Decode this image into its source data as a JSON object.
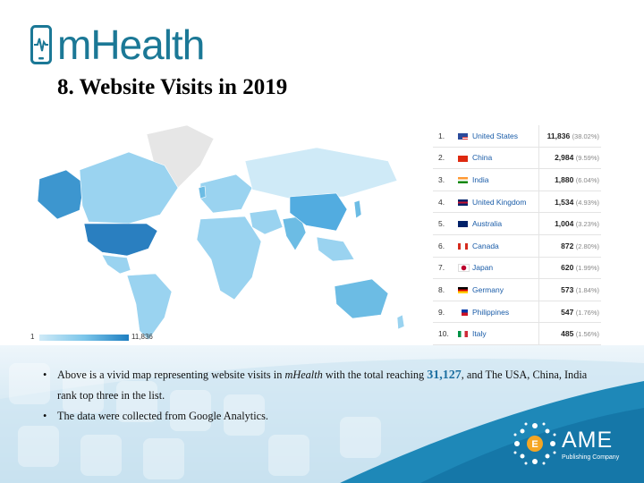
{
  "logo": {
    "text": "mHealth"
  },
  "title": "8. Website Visits in 2019",
  "map": {
    "legend_min": "1",
    "legend_max": "11,836",
    "colors": {
      "light": "#cfeaf7",
      "mid": "#7cc6ea",
      "dark": "#1e7fc1",
      "land_none": "#e6e6e6"
    }
  },
  "rankings": [
    {
      "rank": "1.",
      "country": "United States",
      "value": "11,836",
      "pct": "(38.02%)",
      "flag": "us-flag"
    },
    {
      "rank": "2.",
      "country": "China",
      "value": "2,984",
      "pct": "(9.59%)",
      "flag": "cn-flag"
    },
    {
      "rank": "3.",
      "country": "India",
      "value": "1,880",
      "pct": "(6.04%)",
      "flag": "in-flag"
    },
    {
      "rank": "4.",
      "country": "United Kingdom",
      "value": "1,534",
      "pct": "(4.93%)",
      "flag": "gb-flag"
    },
    {
      "rank": "5.",
      "country": "Australia",
      "value": "1,004",
      "pct": "(3.23%)",
      "flag": "au-flag"
    },
    {
      "rank": "6.",
      "country": "Canada",
      "value": "872",
      "pct": "(2.80%)",
      "flag": "ca-flag"
    },
    {
      "rank": "7.",
      "country": "Japan",
      "value": "620",
      "pct": "(1.99%)",
      "flag": "jp-flag"
    },
    {
      "rank": "8.",
      "country": "Germany",
      "value": "573",
      "pct": "(1.84%)",
      "flag": "de-flag"
    },
    {
      "rank": "9.",
      "country": "Philippines",
      "value": "547",
      "pct": "(1.76%)",
      "flag": "ph-flag"
    },
    {
      "rank": "10.",
      "country": "Italy",
      "value": "485",
      "pct": "(1.56%)",
      "flag": "it-flag"
    }
  ],
  "bullets": {
    "b1_pre": "Above is a vivid map representing website visits in ",
    "b1_em": "mHealth",
    "b1_mid": " with the total reaching ",
    "b1_num": "31,127",
    "b1_post": ", and The USA, China, India rank top three in the list.",
    "b2": "The data were collected from Google Analytics."
  },
  "publisher": {
    "name": "AME",
    "sub": "Publishing Company"
  }
}
